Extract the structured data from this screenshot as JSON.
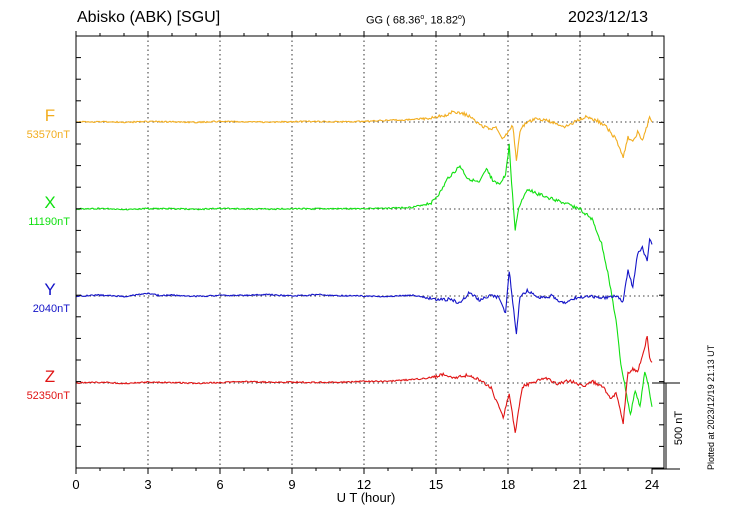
{
  "header": {
    "station": "Abisko (ABK)  [SGU]",
    "coords_prefix": "GG ( 68.36",
    "coords_mid": ",  18.82",
    "coords_suffix": ")",
    "degree": "o",
    "date": "2023/12/13"
  },
  "footer_note": "Plotted at 2023/12/19 21:13 UT",
  "colors": {
    "F": "#f2ad1f",
    "X": "#10e010",
    "Y": "#1414c8",
    "Z": "#e01414",
    "axis": "#000000"
  },
  "chart_data": {
    "type": "line",
    "title": "Abisko (ABK)  [SGU]",
    "xlabel": "U T (hour)",
    "xlim": [
      0,
      24
    ],
    "xticks": [
      "0",
      "3",
      "6",
      "9",
      "12",
      "15",
      "18",
      "21",
      "24"
    ],
    "grid": true,
    "scale_bar": {
      "label": "500 nT",
      "value_nT": 500
    },
    "series": [
      {
        "name": "F",
        "baseline_label": "53570nT",
        "points": [
          [
            0,
            0
          ],
          [
            1,
            2
          ],
          [
            2,
            -2
          ],
          [
            3,
            3
          ],
          [
            4,
            1
          ],
          [
            5,
            -2
          ],
          [
            6,
            4
          ],
          [
            7,
            2
          ],
          [
            8,
            -1
          ],
          [
            9,
            2
          ],
          [
            10,
            3
          ],
          [
            11,
            1
          ],
          [
            12,
            4
          ],
          [
            13,
            10
          ],
          [
            14,
            14
          ],
          [
            14.8,
            25
          ],
          [
            15.3,
            35
          ],
          [
            15.7,
            60
          ],
          [
            16,
            55
          ],
          [
            16.3,
            40
          ],
          [
            16.6,
            10
          ],
          [
            16.9,
            -20
          ],
          [
            17.2,
            -40
          ],
          [
            17.5,
            -30
          ],
          [
            17.8,
            -100
          ],
          [
            18.0,
            -60
          ],
          [
            18.2,
            -20
          ],
          [
            18.35,
            -220
          ],
          [
            18.5,
            -50
          ],
          [
            18.8,
            5
          ],
          [
            19.2,
            20
          ],
          [
            19.6,
            10
          ],
          [
            20,
            -10
          ],
          [
            20.4,
            -30
          ],
          [
            20.7,
            -5
          ],
          [
            21.2,
            30
          ],
          [
            21.7,
            10
          ],
          [
            22.1,
            -30
          ],
          [
            22.5,
            -100
          ],
          [
            22.8,
            -200
          ],
          [
            23.0,
            -90
          ],
          [
            23.2,
            -120
          ],
          [
            23.4,
            -60
          ],
          [
            23.6,
            -110
          ],
          [
            23.8,
            -20
          ],
          [
            23.9,
            40
          ],
          [
            24,
            0
          ]
        ]
      },
      {
        "name": "X",
        "baseline_label": "11190nT",
        "points": [
          [
            0,
            0
          ],
          [
            1,
            3
          ],
          [
            2,
            -2
          ],
          [
            3,
            2
          ],
          [
            4,
            2
          ],
          [
            5,
            -2
          ],
          [
            6,
            3
          ],
          [
            7,
            1
          ],
          [
            8,
            0
          ],
          [
            9,
            2
          ],
          [
            10,
            1
          ],
          [
            11,
            1
          ],
          [
            12,
            3
          ],
          [
            13,
            5
          ],
          [
            14,
            10
          ],
          [
            14.8,
            35
          ],
          [
            15.2,
            100
          ],
          [
            15.5,
            180
          ],
          [
            15.8,
            220
          ],
          [
            16,
            250
          ],
          [
            16.3,
            180
          ],
          [
            16.8,
            150
          ],
          [
            17.1,
            230
          ],
          [
            17.4,
            160
          ],
          [
            17.7,
            150
          ],
          [
            17.9,
            200
          ],
          [
            18.05,
            370
          ],
          [
            18.15,
            150
          ],
          [
            18.3,
            -120
          ],
          [
            18.45,
            10
          ],
          [
            18.8,
            120
          ],
          [
            19.2,
            90
          ],
          [
            19.8,
            60
          ],
          [
            20.4,
            30
          ],
          [
            20.8,
            10
          ],
          [
            21,
            0
          ],
          [
            21.5,
            -60
          ],
          [
            21.9,
            -200
          ],
          [
            22.2,
            -400
          ],
          [
            22.5,
            -650
          ],
          [
            22.7,
            -900
          ],
          [
            22.9,
            -1050
          ],
          [
            23.1,
            -1200
          ],
          [
            23.3,
            -1050
          ],
          [
            23.5,
            -1150
          ],
          [
            23.7,
            -950
          ],
          [
            23.85,
            -1020
          ],
          [
            24,
            -1150
          ]
        ]
      },
      {
        "name": "Y",
        "baseline_label": "2040nT",
        "points": [
          [
            0,
            0
          ],
          [
            1,
            5
          ],
          [
            2,
            -3
          ],
          [
            3,
            15
          ],
          [
            3.5,
            2
          ],
          [
            4,
            5
          ],
          [
            5,
            -2
          ],
          [
            6,
            3
          ],
          [
            7,
            4
          ],
          [
            8,
            8
          ],
          [
            9,
            0
          ],
          [
            10,
            8
          ],
          [
            11,
            2
          ],
          [
            12,
            0
          ],
          [
            13,
            -3
          ],
          [
            14,
            5
          ],
          [
            15,
            -20
          ],
          [
            15.6,
            -20
          ],
          [
            16,
            -40
          ],
          [
            16.4,
            20
          ],
          [
            16.8,
            -25
          ],
          [
            17.2,
            0
          ],
          [
            17.6,
            -5
          ],
          [
            17.9,
            -100
          ],
          [
            18.05,
            150
          ],
          [
            18.2,
            -40
          ],
          [
            18.35,
            -230
          ],
          [
            18.5,
            0
          ],
          [
            18.8,
            30
          ],
          [
            19.3,
            -10
          ],
          [
            19.8,
            0
          ],
          [
            20.3,
            -40
          ],
          [
            20.8,
            -10
          ],
          [
            21.3,
            0
          ],
          [
            22,
            -10
          ],
          [
            22.5,
            0
          ],
          [
            22.8,
            -30
          ],
          [
            23.0,
            150
          ],
          [
            23.2,
            50
          ],
          [
            23.4,
            250
          ],
          [
            23.6,
            280
          ],
          [
            23.8,
            200
          ],
          [
            23.9,
            330
          ],
          [
            24,
            300
          ]
        ]
      },
      {
        "name": "Z",
        "baseline_label": "52350nT",
        "points": [
          [
            0,
            0
          ],
          [
            1,
            5
          ],
          [
            2,
            -3
          ],
          [
            3,
            5
          ],
          [
            4,
            3
          ],
          [
            5,
            -2
          ],
          [
            6,
            3
          ],
          [
            7,
            8
          ],
          [
            8,
            5
          ],
          [
            9,
            5
          ],
          [
            10,
            3
          ],
          [
            11,
            5
          ],
          [
            12,
            10
          ],
          [
            13,
            10
          ],
          [
            14,
            20
          ],
          [
            14.8,
            30
          ],
          [
            15.3,
            50
          ],
          [
            15.8,
            30
          ],
          [
            16.3,
            45
          ],
          [
            16.8,
            20
          ],
          [
            17.3,
            -30
          ],
          [
            17.8,
            -200
          ],
          [
            18.05,
            -60
          ],
          [
            18.3,
            -290
          ],
          [
            18.6,
            -20
          ],
          [
            19.0,
            0
          ],
          [
            19.5,
            30
          ],
          [
            20.1,
            -5
          ],
          [
            20.6,
            15
          ],
          [
            21.1,
            -20
          ],
          [
            21.5,
            10
          ],
          [
            22.0,
            -30
          ],
          [
            22.3,
            -90
          ],
          [
            22.5,
            -60
          ],
          [
            22.8,
            -230
          ],
          [
            23.0,
            60
          ],
          [
            23.2,
            80
          ],
          [
            23.4,
            70
          ],
          [
            23.6,
            150
          ],
          [
            23.8,
            270
          ],
          [
            23.9,
            150
          ],
          [
            24,
            120
          ]
        ]
      }
    ]
  }
}
